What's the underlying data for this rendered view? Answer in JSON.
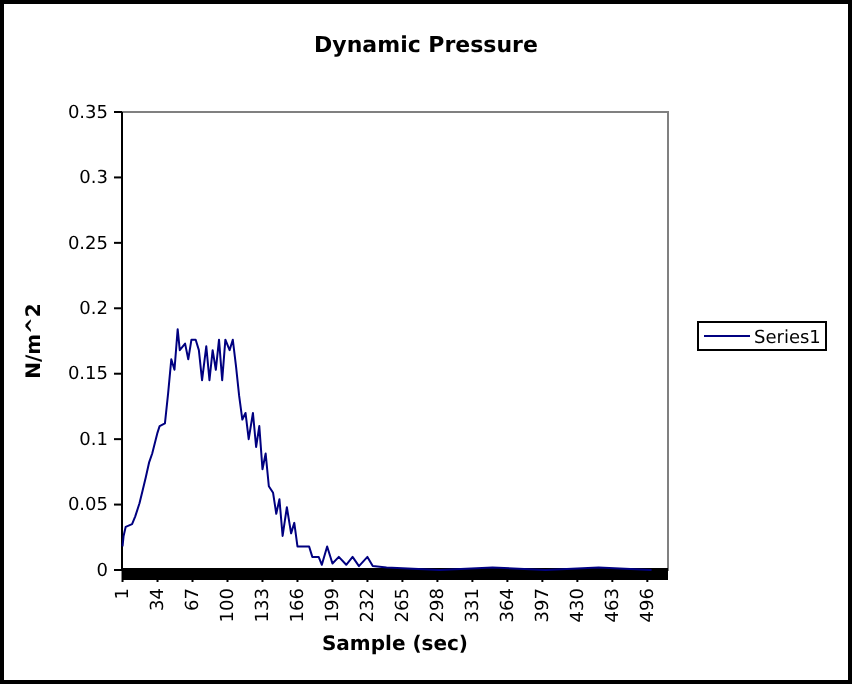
{
  "chart_data": {
    "type": "line",
    "title": "Dynamic Pressure",
    "xlabel": "Sample (sec)",
    "ylabel": "N/m^2",
    "x": [
      1,
      2,
      4,
      10,
      13,
      17,
      20,
      23,
      26,
      29,
      34,
      36,
      41,
      44,
      47,
      50,
      53,
      55,
      60,
      63,
      66,
      70,
      73,
      76,
      80,
      83,
      86,
      89,
      92,
      95,
      98,
      102,
      105,
      108,
      111,
      114,
      117,
      120,
      124,
      127,
      130,
      133,
      136,
      139,
      143,
      146,
      149,
      152,
      156,
      160,
      163,
      166,
      177,
      180,
      186,
      189,
      194,
      199,
      205,
      212,
      218,
      224,
      232,
      237,
      250,
      300,
      350,
      400,
      450,
      500
    ],
    "series": [
      {
        "name": "Series1",
        "color": "#000080",
        "values": [
          0.018,
          0.026,
          0.033,
          0.035,
          0.041,
          0.051,
          0.061,
          0.071,
          0.082,
          0.089,
          0.105,
          0.11,
          0.112,
          0.135,
          0.161,
          0.153,
          0.184,
          0.168,
          0.173,
          0.161,
          0.176,
          0.176,
          0.168,
          0.145,
          0.171,
          0.145,
          0.168,
          0.153,
          0.176,
          0.145,
          0.176,
          0.168,
          0.176,
          0.156,
          0.133,
          0.115,
          0.12,
          0.1,
          0.12,
          0.094,
          0.11,
          0.077,
          0.089,
          0.064,
          0.059,
          0.043,
          0.054,
          0.026,
          0.048,
          0.028,
          0.036,
          0.018,
          0.018,
          0.01,
          0.01,
          0.004,
          0.018,
          0.005,
          0.01,
          0.004,
          0.01,
          0.003,
          0.01,
          0.003,
          0.002,
          0,
          0.002,
          0,
          0.002,
          0
        ]
      }
    ],
    "xlim": [
      0.5,
      515.5
    ],
    "xticks": [
      1,
      34,
      67,
      100,
      133,
      166,
      199,
      232,
      265,
      298,
      331,
      364,
      397,
      430,
      463,
      496
    ],
    "ylim": [
      0,
      0.35
    ],
    "yticks": [
      0,
      0.05,
      0.1,
      0.15,
      0.2,
      0.25,
      0.3,
      0.35
    ],
    "grid": false,
    "legend": "right"
  }
}
